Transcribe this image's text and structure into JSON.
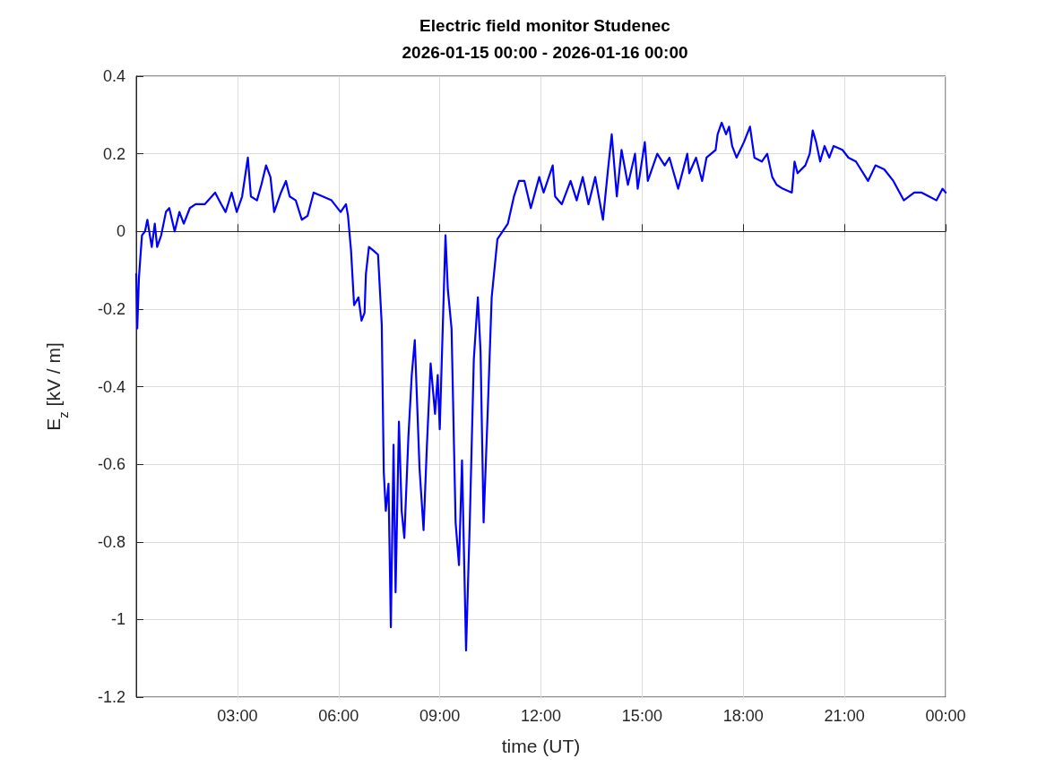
{
  "chart_data": {
    "type": "line",
    "title": "Electric field monitor Studenec",
    "subtitle": "2026-01-15 00:00 - 2026-01-16 00:00",
    "xlabel": "time (UT)",
    "ylabel": "E$_{z}$ [kV / m]",
    "xlim": [
      0,
      24
    ],
    "xticks": [
      {
        "value": 3,
        "label": "03:00"
      },
      {
        "value": 6,
        "label": "06:00"
      },
      {
        "value": 9,
        "label": "09:00"
      },
      {
        "value": 12,
        "label": "12:00"
      },
      {
        "value": 15,
        "label": "15:00"
      },
      {
        "value": 18,
        "label": "18:00"
      },
      {
        "value": 21,
        "label": "21:00"
      },
      {
        "value": 24,
        "label": "00:00"
      }
    ],
    "ylim": [
      -1.2,
      0.4
    ],
    "yticks": [
      -1.2,
      -1,
      -0.8,
      -0.6,
      -0.4,
      -0.2,
      0,
      0.2,
      0.4
    ],
    "grid": true,
    "marker": "none",
    "line_style": "solid",
    "series": [
      {
        "color": "#0000ff",
        "x": [
          0.0,
          0.03,
          0.08,
          0.12,
          0.17,
          0.26,
          0.33,
          0.46,
          0.55,
          0.62,
          0.74,
          0.88,
          0.98,
          1.14,
          1.28,
          1.41,
          1.59,
          1.76,
          2.03,
          2.34,
          2.52,
          2.65,
          2.83,
          2.98,
          3.14,
          3.31,
          3.4,
          3.58,
          3.71,
          3.85,
          3.98,
          4.09,
          4.29,
          4.44,
          4.55,
          4.73,
          4.91,
          5.08,
          5.26,
          5.53,
          5.79,
          6.06,
          6.22,
          6.28,
          6.37,
          6.46,
          6.59,
          6.68,
          6.77,
          6.81,
          6.9,
          7.04,
          7.17,
          7.28,
          7.34,
          7.4,
          7.48,
          7.55,
          7.63,
          7.69,
          7.79,
          7.87,
          7.95,
          8.07,
          8.17,
          8.26,
          8.4,
          8.52,
          8.62,
          8.73,
          8.86,
          8.94,
          9.0,
          9.17,
          9.24,
          9.35,
          9.47,
          9.57,
          9.66,
          9.78,
          9.89,
          10.01,
          10.13,
          10.21,
          10.3,
          10.42,
          10.54,
          10.71,
          11.02,
          11.2,
          11.35,
          11.51,
          11.7,
          11.95,
          12.08,
          12.35,
          12.42,
          12.62,
          12.88,
          13.06,
          13.24,
          13.41,
          13.61,
          13.84,
          13.99,
          14.1,
          14.25,
          14.39,
          14.58,
          14.79,
          14.87,
          15.08,
          15.17,
          15.45,
          15.67,
          15.81,
          15.94,
          16.07,
          16.34,
          16.4,
          16.6,
          16.78,
          16.91,
          17.18,
          17.24,
          17.36,
          17.49,
          17.58,
          17.67,
          17.8,
          18.02,
          18.2,
          18.33,
          18.55,
          18.71,
          18.86,
          18.99,
          19.17,
          19.44,
          19.52,
          19.61,
          19.84,
          19.97,
          20.06,
          20.16,
          20.28,
          20.41,
          20.55,
          20.68,
          20.94,
          21.12,
          21.34,
          21.7,
          21.92,
          22.18,
          22.45,
          22.76,
          23.07,
          23.29,
          23.51,
          23.73,
          23.91,
          24.0
        ],
        "values": [
          -0.11,
          -0.25,
          -0.12,
          -0.07,
          -0.01,
          0.0,
          0.03,
          -0.04,
          0.02,
          -0.04,
          -0.01,
          0.05,
          0.06,
          0.0,
          0.05,
          0.02,
          0.06,
          0.07,
          0.07,
          0.1,
          0.07,
          0.05,
          0.1,
          0.05,
          0.09,
          0.19,
          0.09,
          0.08,
          0.12,
          0.17,
          0.14,
          0.05,
          0.1,
          0.13,
          0.09,
          0.08,
          0.03,
          0.04,
          0.1,
          0.09,
          0.08,
          0.05,
          0.07,
          0.04,
          -0.05,
          -0.19,
          -0.17,
          -0.23,
          -0.21,
          -0.11,
          -0.04,
          -0.05,
          -0.06,
          -0.24,
          -0.62,
          -0.72,
          -0.65,
          -1.02,
          -0.55,
          -0.93,
          -0.49,
          -0.72,
          -0.79,
          -0.53,
          -0.37,
          -0.28,
          -0.61,
          -0.77,
          -0.55,
          -0.34,
          -0.47,
          -0.37,
          -0.51,
          -0.01,
          -0.15,
          -0.25,
          -0.75,
          -0.86,
          -0.59,
          -1.08,
          -0.75,
          -0.33,
          -0.17,
          -0.31,
          -0.75,
          -0.47,
          -0.17,
          -0.02,
          0.02,
          0.09,
          0.13,
          0.13,
          0.06,
          0.14,
          0.1,
          0.17,
          0.09,
          0.07,
          0.13,
          0.08,
          0.14,
          0.07,
          0.14,
          0.03,
          0.16,
          0.25,
          0.09,
          0.21,
          0.12,
          0.2,
          0.11,
          0.23,
          0.13,
          0.2,
          0.17,
          0.19,
          0.15,
          0.11,
          0.2,
          0.15,
          0.19,
          0.13,
          0.19,
          0.21,
          0.25,
          0.28,
          0.25,
          0.27,
          0.22,
          0.19,
          0.23,
          0.27,
          0.19,
          0.18,
          0.2,
          0.14,
          0.12,
          0.11,
          0.1,
          0.18,
          0.15,
          0.17,
          0.2,
          0.26,
          0.23,
          0.18,
          0.22,
          0.19,
          0.22,
          0.21,
          0.19,
          0.18,
          0.13,
          0.17,
          0.16,
          0.13,
          0.08,
          0.1,
          0.1,
          0.09,
          0.08,
          0.11,
          0.1
        ]
      }
    ]
  }
}
